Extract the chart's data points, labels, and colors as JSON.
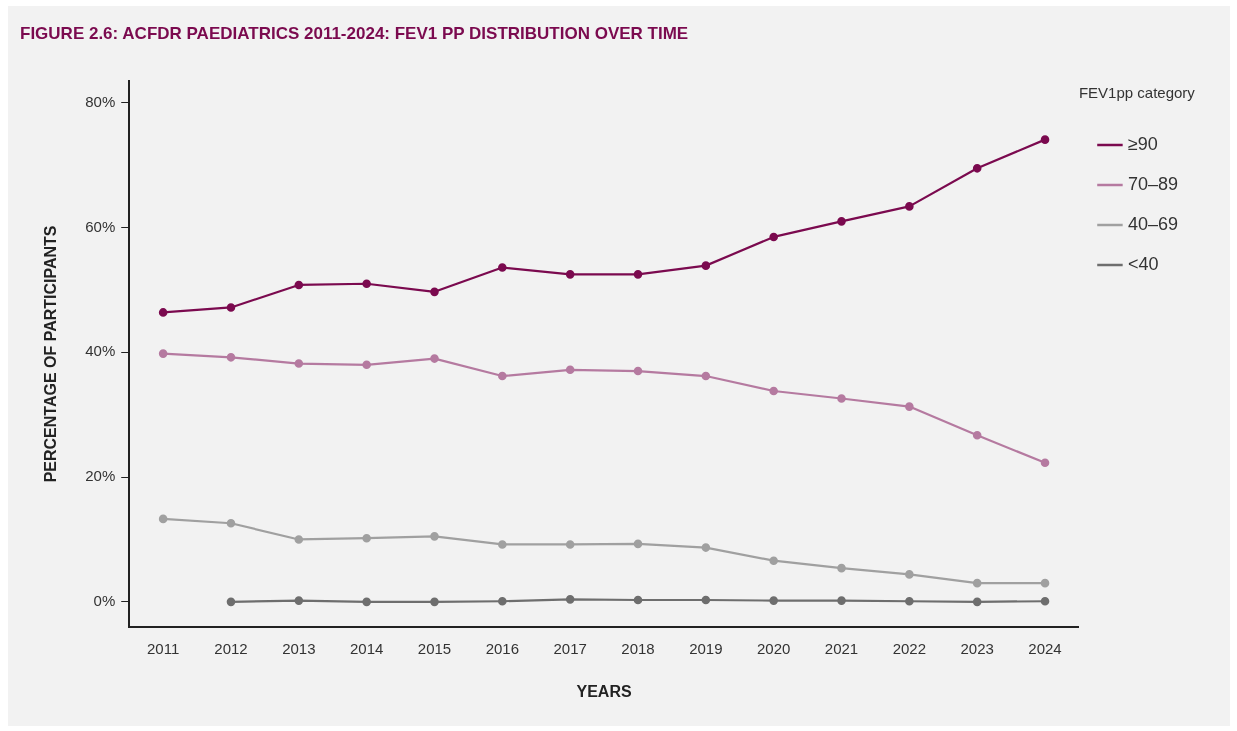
{
  "chart_data": {
    "type": "line",
    "title": "FIGURE 2.6: ACFDR PAEDIATRICS 2011-2024: FEV1 PP DISTRIBUTION OVER TIME",
    "xlabel": "YEARS",
    "ylabel": "PERCENTAGE OF PARTICIPANTS",
    "legend_title": "FEV1pp category",
    "categories": [
      "2011",
      "2012",
      "2013",
      "2014",
      "2015",
      "2016",
      "2017",
      "2018",
      "2019",
      "2020",
      "2021",
      "2022",
      "2023",
      "2024"
    ],
    "series": [
      {
        "name": "≥90",
        "color": "#7b0a4f",
        "values": [
          46.4,
          47.2,
          50.8,
          51.0,
          49.7,
          53.6,
          52.5,
          52.5,
          53.9,
          58.5,
          61.0,
          63.4,
          69.5,
          74.1
        ]
      },
      {
        "name": "70–89",
        "color": "#b57aa0",
        "values": [
          39.8,
          39.2,
          38.2,
          38.0,
          39.0,
          36.2,
          37.2,
          37.0,
          36.2,
          33.8,
          32.6,
          31.3,
          26.7,
          22.3
        ]
      },
      {
        "name": "40–69",
        "color": "#a0a0a0",
        "values": [
          13.3,
          12.6,
          10.0,
          10.2,
          10.5,
          9.2,
          9.2,
          9.3,
          8.7,
          6.6,
          5.4,
          4.4,
          3.0,
          3.0
        ]
      },
      {
        "name": "<40",
        "color": "#6e6e6e",
        "values": [
          null,
          0.0,
          0.2,
          0.0,
          0.0,
          0.1,
          0.4,
          0.3,
          0.3,
          0.2,
          0.2,
          0.1,
          0.0,
          0.1
        ]
      }
    ],
    "ylim": [
      -4,
      83.5
    ],
    "yticks": [
      {
        "value": 0,
        "label": "0%"
      },
      {
        "value": 20,
        "label": "20%"
      },
      {
        "value": 40,
        "label": "40%"
      },
      {
        "value": 60,
        "label": "60%"
      },
      {
        "value": 80,
        "label": "80%"
      }
    ],
    "grid": false,
    "legend": "right",
    "marker": "circle",
    "line_style": "solid"
  }
}
